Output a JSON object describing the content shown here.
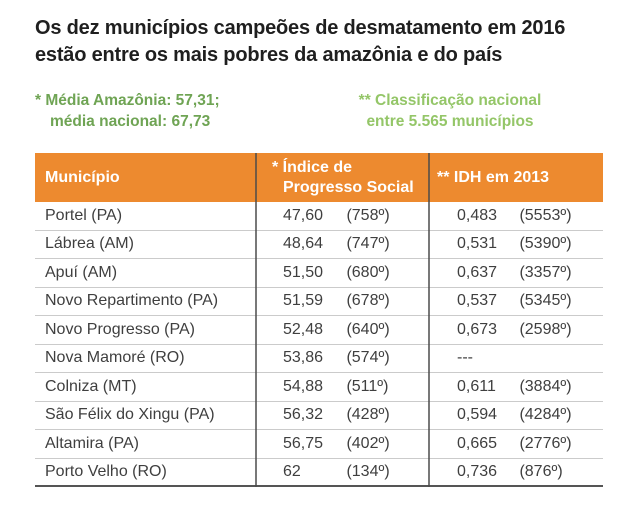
{
  "title": {
    "line1": "Os dez municípios campeões de desmatamento em 2016",
    "line2": "estão entre os mais pobres da amazônia e do país"
  },
  "notes": {
    "ips": {
      "line1": "* Média Amazônia: 57,31;",
      "line2": "média nacional: 67,73"
    },
    "idh": {
      "line1": "** Classificação nacional",
      "line2": "entre 5.565 municípios"
    }
  },
  "table": {
    "headers": {
      "municipio": "Município",
      "ips_line1": "* Índice de",
      "ips_line2": "Progresso Social",
      "idh": "** IDH em 2013"
    },
    "rows": [
      {
        "municipio": "Portel (PA)",
        "ips_value": "47,60",
        "ips_rank": "(758º)",
        "idh_value": "0,483",
        "idh_rank": "(5553º)"
      },
      {
        "municipio": "Lábrea (AM)",
        "ips_value": "48,64",
        "ips_rank": "(747º)",
        "idh_value": "0,531",
        "idh_rank": "(5390º)"
      },
      {
        "municipio": "Apuí (AM)",
        "ips_value": "51,50",
        "ips_rank": "(680º)",
        "idh_value": "0,637",
        "idh_rank": "(3357º)"
      },
      {
        "municipio": "Novo Repartimento (PA)",
        "ips_value": "51,59",
        "ips_rank": "(678º)",
        "idh_value": "0,537",
        "idh_rank": "(5345º)"
      },
      {
        "municipio": "Novo Progresso (PA)",
        "ips_value": "52,48",
        "ips_rank": "(640º)",
        "idh_value": "0,673",
        "idh_rank": "(2598º)"
      },
      {
        "municipio": "Nova Mamoré (RO)",
        "ips_value": "53,86",
        "ips_rank": "(574º)",
        "idh_value": "---",
        "idh_rank": ""
      },
      {
        "municipio": "Colniza (MT)",
        "ips_value": "54,88",
        "ips_rank": "(511º)",
        "idh_value": "0,611",
        "idh_rank": "(3884º)"
      },
      {
        "municipio": "São Félix do Xingu (PA)",
        "ips_value": "56,32",
        "ips_rank": "(428º)",
        "idh_value": "0,594",
        "idh_rank": "(4284º)"
      },
      {
        "municipio": "Altamira (PA)",
        "ips_value": "56,75",
        "ips_rank": "(402º)",
        "idh_value": "0,665",
        "idh_rank": "(2776º)"
      },
      {
        "municipio": "Porto Velho (RO)",
        "ips_value": "62",
        "ips_rank": "(134º)",
        "idh_value": "0,736",
        "idh_rank": "(876º)"
      }
    ]
  },
  "chart_data": {
    "type": "table",
    "title": "Os dez municípios campeões de desmatamento em 2016 estão entre os mais pobres da amazônia e do país",
    "columns": [
      "Município",
      "* Índice de Progresso Social",
      "** IDH em 2013"
    ],
    "rows": [
      [
        "Portel (PA)",
        "47,60 (758º)",
        "0,483 (5553º)"
      ],
      [
        "Lábrea (AM)",
        "48,64 (747º)",
        "0,531 (5390º)"
      ],
      [
        "Apuí (AM)",
        "51,50 (680º)",
        "0,637 (3357º)"
      ],
      [
        "Novo Repartimento (PA)",
        "51,59 (678º)",
        "0,537 (5345º)"
      ],
      [
        "Novo Progresso (PA)",
        "52,48 (640º)",
        "0,673 (2598º)"
      ],
      [
        "Nova Mamoré (RO)",
        "53,86 (574º)",
        "---"
      ],
      [
        "Colniza (MT)",
        "54,88 (511º)",
        "0,611 (3884º)"
      ],
      [
        "São Félix do Xingu (PA)",
        "56,32 (428º)",
        "0,594 (4284º)"
      ],
      [
        "Altamira (PA)",
        "56,75 (402º)",
        "0,665 (2776º)"
      ],
      [
        "Porto Velho (RO)",
        "62 (134º)",
        "0,736 (876º)"
      ]
    ],
    "footnotes": [
      "* Média Amazônia: 57,31; média nacional: 67,73",
      "** Classificação nacional entre 5.565 municípios"
    ]
  },
  "colors": {
    "orange": "#ED8A2F",
    "green_dark": "#6FA454",
    "green_light": "#94C668",
    "title_color": "#1f1f1f",
    "body_text": "#3f3f3f",
    "row_line": "#cbcbcb",
    "dark_line": "#555555"
  }
}
